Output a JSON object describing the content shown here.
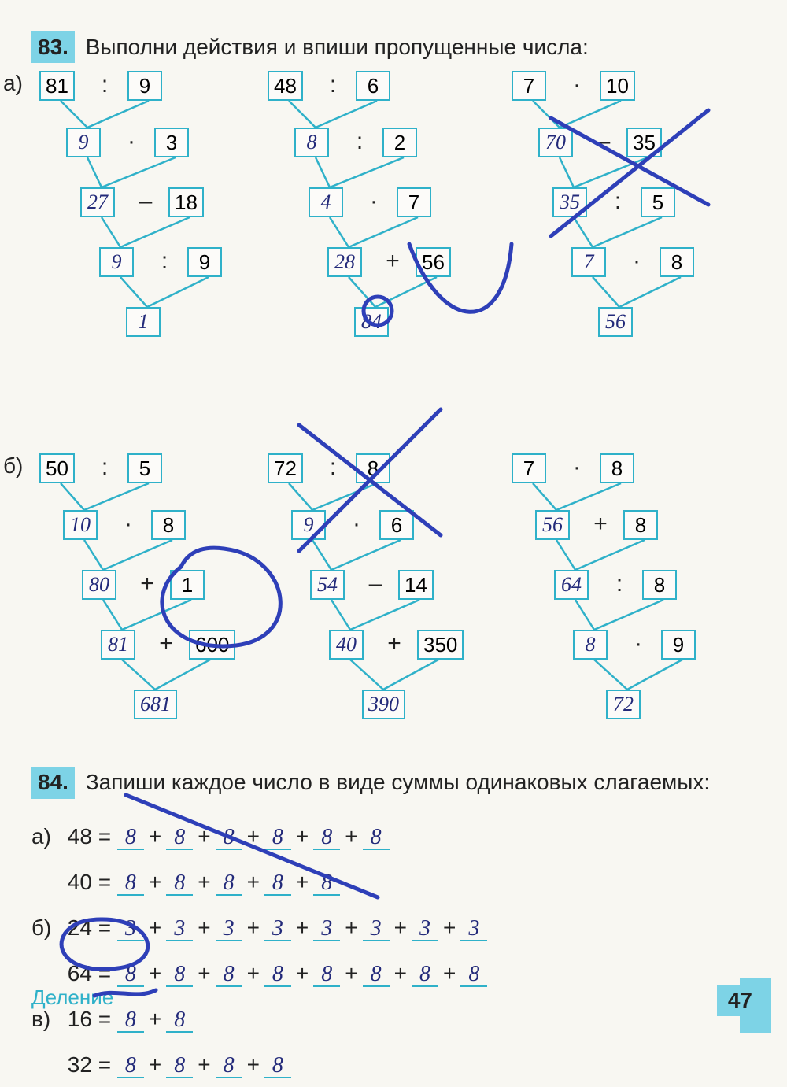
{
  "page_number": "47",
  "footer": "Деление",
  "ex83": {
    "num": "83.",
    "title": "Выполни действия и впиши пропущенные числа:",
    "label_a": "а)",
    "label_b": "б)",
    "colors": {
      "border": "#2fb1c9",
      "highlight": "#7dd3e6",
      "pen": "#232a7a",
      "text": "#222"
    },
    "tree_a1": {
      "r0": {
        "b1": "81",
        "op": ":",
        "b2": "9"
      },
      "r1": {
        "b1": "9",
        "op": "·",
        "b2": "3"
      },
      "r2": {
        "b1": "27",
        "op": "–",
        "b2": "18"
      },
      "r3": {
        "b1": "9",
        "op": ":",
        "b2": "9"
      },
      "r4": {
        "b1": "1"
      }
    },
    "tree_a2": {
      "r0": {
        "b1": "48",
        "op": ":",
        "b2": "6"
      },
      "r1": {
        "b1": "8",
        "op": ":",
        "b2": "2"
      },
      "r2": {
        "b1": "4",
        "op": "·",
        "b2": "7"
      },
      "r3": {
        "b1": "28",
        "op": "+",
        "b2": "56"
      },
      "r4": {
        "b1": "84"
      }
    },
    "tree_a3": {
      "r0": {
        "b1": "7",
        "op": "·",
        "b2": "10"
      },
      "r1": {
        "b1": "70",
        "op": "–",
        "b2": "35"
      },
      "r2": {
        "b1": "35",
        "op": ":",
        "b2": "5"
      },
      "r3": {
        "b1": "7",
        "op": "·",
        "b2": "8"
      },
      "r4": {
        "b1": "56"
      }
    },
    "tree_b1": {
      "r0": {
        "b1": "50",
        "op": ":",
        "b2": "5"
      },
      "r1": {
        "b1": "10",
        "op": "·",
        "b2": "8"
      },
      "r2": {
        "b1": "80",
        "op": "+",
        "b2": "1"
      },
      "r3": {
        "b1": "81",
        "op": "+",
        "b2": "600"
      },
      "r4": {
        "b1": "681"
      }
    },
    "tree_b2": {
      "r0": {
        "b1": "72",
        "op": ":",
        "b2": "8"
      },
      "r1": {
        "b1": "9",
        "op": "·",
        "b2": "6"
      },
      "r2": {
        "b1": "54",
        "op": "–",
        "b2": "14"
      },
      "r3": {
        "b1": "40",
        "op": "+",
        "b2": "350"
      },
      "r4": {
        "b1": "390"
      }
    },
    "tree_b3": {
      "r0": {
        "b1": "7",
        "op": "·",
        "b2": "8"
      },
      "r1": {
        "b1": "56",
        "op": "+",
        "b2": "8"
      },
      "r2": {
        "b1": "64",
        "op": ":",
        "b2": "8"
      },
      "r3": {
        "b1": "8",
        "op": "·",
        "b2": "9"
      },
      "r4": {
        "b1": "72"
      }
    }
  },
  "ex84": {
    "num": "84.",
    "title": "Запиши каждое число в виде суммы одинаковых слагаемых:",
    "rows": [
      {
        "label": "а)",
        "lhs": "48",
        "terms": [
          "8",
          "8",
          "8",
          "8",
          "8",
          "8"
        ]
      },
      {
        "label": "",
        "lhs": "40",
        "terms": [
          "8",
          "8",
          "8",
          "8",
          "8"
        ]
      },
      {
        "label": "б)",
        "lhs": "24",
        "terms": [
          "3",
          "3",
          "3",
          "3",
          "3",
          "3",
          "3",
          "3"
        ]
      },
      {
        "label": "",
        "lhs": "64",
        "terms": [
          "8",
          "8",
          "8",
          "8",
          "8",
          "8",
          "8",
          "8"
        ]
      },
      {
        "label": "в)",
        "lhs": "16",
        "terms": [
          "8",
          "8"
        ]
      },
      {
        "label": "",
        "lhs": "32",
        "terms": [
          "8",
          "8",
          "8",
          "8"
        ]
      }
    ]
  }
}
